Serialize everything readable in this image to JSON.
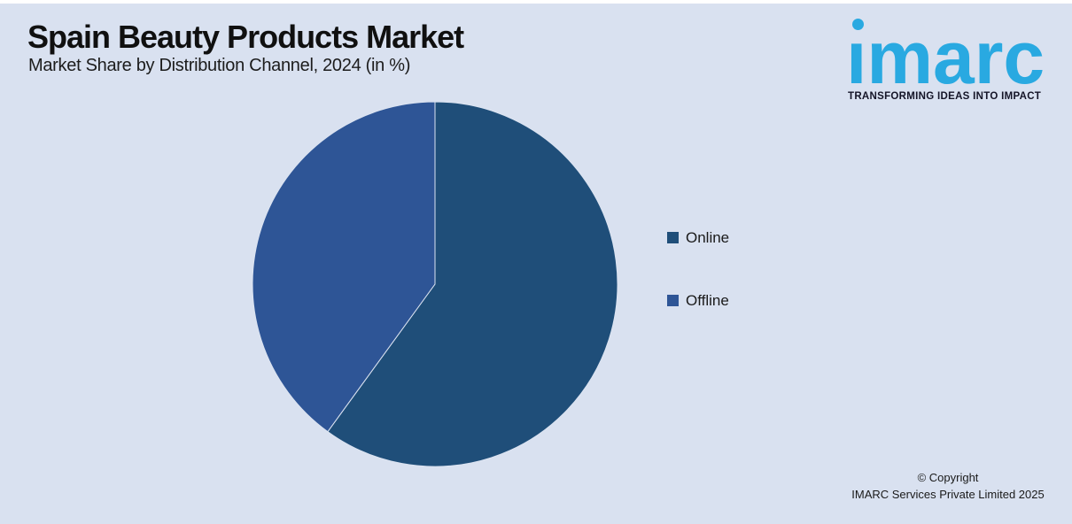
{
  "page": {
    "background_color": "#d9e1f0"
  },
  "header": {
    "title": "Spain Beauty Products Market",
    "subtitle": "Market Share by Distribution Channel, 2024 (in %)"
  },
  "logo": {
    "brand": "imarc",
    "tagline": "TRANSFORMING IDEAS INTO IMPACT",
    "brand_color": "#29a9e1"
  },
  "chart_data": {
    "type": "pie",
    "title": "Spain Beauty Products Market",
    "subtitle": "Market Share by Distribution Channel, 2024 (in %)",
    "unit": "%",
    "start_angle_deg": 0,
    "direction": "clockwise",
    "legend_position": "right",
    "data_labels_shown": false,
    "slices": [
      {
        "label": "Online",
        "value": 60,
        "color": "#1f4e79"
      },
      {
        "label": "Offline",
        "value": 40,
        "color": "#2e5596"
      }
    ]
  },
  "footer": {
    "copyright_line1": "© Copyright",
    "copyright_line2": "IMARC Services Private Limited 2025"
  }
}
